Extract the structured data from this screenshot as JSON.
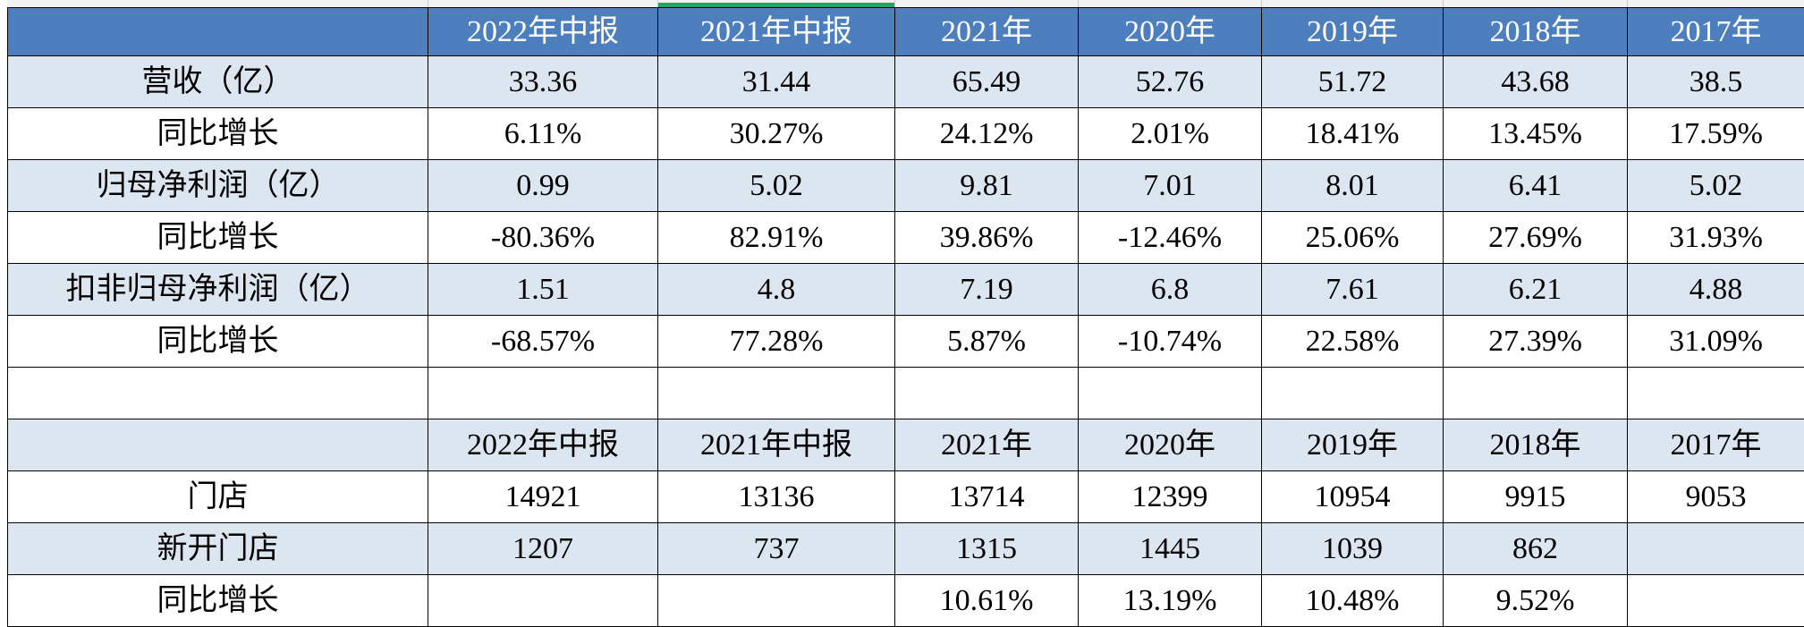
{
  "app": {
    "kind": "spreadsheet-region",
    "selection_indicator": {
      "over_column": "2021年中报",
      "color": "#22a567"
    }
  },
  "colors": {
    "header_bg": "#4d7ebd",
    "header_text": "#ffffff",
    "shade_bg": "#dce6f1",
    "grid_border": "#000000",
    "strip_bg": "#f2f2f2",
    "strip_divider": "#c9c9c9",
    "selection_green": "#22a567"
  },
  "financial_table": {
    "corner_label": "",
    "columns": [
      "2022年中报",
      "2021年中报",
      "2021年",
      "2020年",
      "2019年",
      "2018年",
      "2017年"
    ],
    "rows": [
      {
        "label": "营收（亿）",
        "shaded": true,
        "values": [
          "33.36",
          "31.44",
          "65.49",
          "52.76",
          "51.72",
          "43.68",
          "38.5"
        ]
      },
      {
        "label": "同比增长",
        "shaded": false,
        "values": [
          "6.11%",
          "30.27%",
          "24.12%",
          "2.01%",
          "18.41%",
          "13.45%",
          "17.59%"
        ]
      },
      {
        "label": "归母净利润（亿）",
        "shaded": true,
        "values": [
          "0.99",
          "5.02",
          "9.81",
          "7.01",
          "8.01",
          "6.41",
          "5.02"
        ]
      },
      {
        "label": "同比增长",
        "shaded": false,
        "values": [
          "-80.36%",
          "82.91%",
          "39.86%",
          "-12.46%",
          "25.06%",
          "27.69%",
          "31.93%"
        ]
      },
      {
        "label": "扣非归母净利润（亿）",
        "shaded": true,
        "values": [
          "1.51",
          "4.8",
          "7.19",
          "6.8",
          "7.61",
          "6.21",
          "4.88"
        ]
      },
      {
        "label": "同比增长",
        "shaded": false,
        "values": [
          "-68.57%",
          "77.28%",
          "5.87%",
          "-10.74%",
          "22.58%",
          "27.39%",
          "31.09%"
        ]
      }
    ]
  },
  "store_table": {
    "corner_label": "",
    "columns": [
      "2022年中报",
      "2021年中报",
      "2021年",
      "2020年",
      "2019年",
      "2018年",
      "2017年"
    ],
    "rows": [
      {
        "label": "门店",
        "shaded": false,
        "values": [
          "14921",
          "13136",
          "13714",
          "12399",
          "10954",
          "9915",
          "9053"
        ]
      },
      {
        "label": "新开门店",
        "shaded": true,
        "values": [
          "1207",
          "737",
          "1315",
          "1445",
          "1039",
          "862",
          ""
        ]
      },
      {
        "label": "同比增长",
        "shaded": false,
        "values": [
          "",
          "",
          "10.61%",
          "13.19%",
          "10.48%",
          "9.52%",
          ""
        ]
      }
    ]
  }
}
